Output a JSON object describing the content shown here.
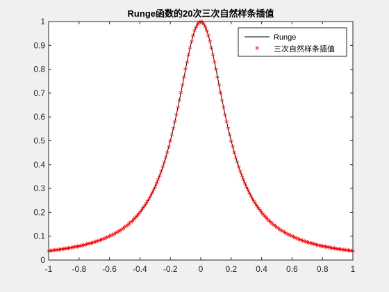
{
  "chart_data": {
    "type": "line",
    "title": "Runge函数的20次三次自然样条插值",
    "xlabel": "",
    "ylabel": "",
    "xlim": [
      -1,
      1
    ],
    "ylim": [
      0,
      1
    ],
    "xticks": [
      -1,
      -0.8,
      -0.6,
      -0.4,
      -0.2,
      0,
      0.2,
      0.4,
      0.6,
      0.8,
      1
    ],
    "yticks": [
      0,
      0.1,
      0.2,
      0.3,
      0.4,
      0.5,
      0.6,
      0.7,
      0.8,
      0.9,
      1
    ],
    "xtick_labels": [
      "-1",
      "-0.8",
      "-0.6",
      "-0.4",
      "-0.2",
      "0",
      "0.2",
      "0.4",
      "0.6",
      "0.8",
      "1"
    ],
    "ytick_labels": [
      "0",
      "0.1",
      "0.2",
      "0.3",
      "0.4",
      "0.5",
      "0.6",
      "0.7",
      "0.8",
      "0.9",
      "1"
    ],
    "grid": false,
    "legend_position": "top-right",
    "series": [
      {
        "name": "Runge",
        "style": "line",
        "color": "#000000",
        "function": "1/(1+25x^2)",
        "x": [
          -1,
          -0.9,
          -0.8,
          -0.7,
          -0.6,
          -0.5,
          -0.4,
          -0.3,
          -0.2,
          -0.1,
          0,
          0.1,
          0.2,
          0.3,
          0.4,
          0.5,
          0.6,
          0.7,
          0.8,
          0.9,
          1
        ],
        "y": [
          0.0385,
          0.0471,
          0.0588,
          0.0755,
          0.1,
          0.1379,
          0.2,
          0.3077,
          0.5,
          0.8,
          1,
          0.8,
          0.5,
          0.3077,
          0.2,
          0.1379,
          0.1,
          0.0755,
          0.0588,
          0.0471,
          0.0385
        ]
      },
      {
        "name": "三次自然样条插值",
        "style": "markers",
        "marker": "*",
        "color": "#ff0000",
        "x_range": [
          -1,
          1
        ],
        "x_step": 0.01
      }
    ]
  }
}
